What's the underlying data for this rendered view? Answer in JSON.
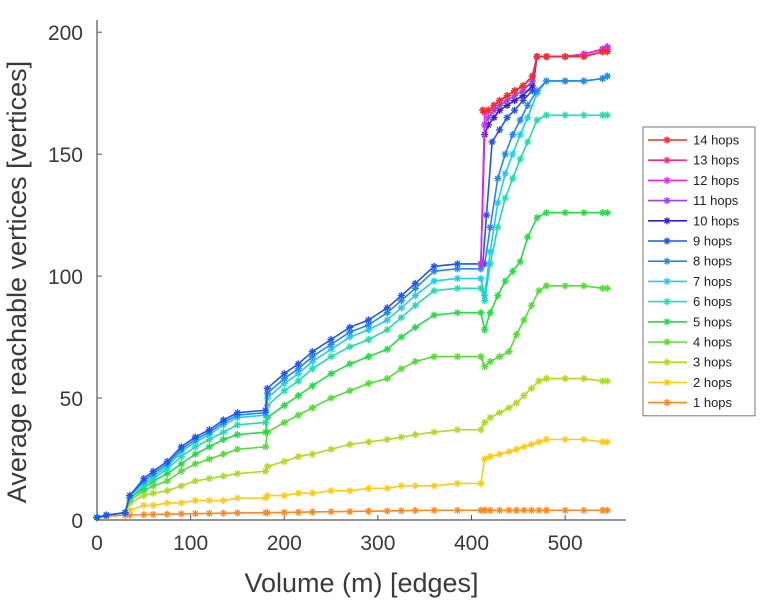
{
  "chart_data": {
    "type": "line",
    "title": "",
    "xlabel": "Volume (m) [edges]",
    "ylabel": "Average reachable vertices [vertices]",
    "xlim": [
      0,
      565
    ],
    "ylim": [
      0,
      205
    ],
    "xticks": [
      0,
      100,
      200,
      300,
      400,
      500
    ],
    "yticks": [
      0,
      50,
      100,
      150,
      200
    ],
    "grid": false,
    "legend_position": "right",
    "marker": "asterisk",
    "series": [
      {
        "name": "14 hops",
        "color": "#ff2a2a",
        "x": [
          412,
          418,
          424,
          430,
          438,
          446,
          455,
          465,
          470,
          480,
          500,
          520,
          540,
          545
        ],
        "y": [
          168,
          168,
          170,
          172,
          174,
          176,
          178,
          182,
          190,
          190,
          190,
          190,
          192,
          192
        ]
      },
      {
        "name": "13 hops",
        "color": "#ff2a80",
        "x": [
          412,
          418,
          424,
          430,
          438,
          446,
          455,
          465,
          470,
          480,
          500,
          520,
          540,
          545
        ],
        "y": [
          168,
          168,
          170,
          172,
          174,
          176,
          178,
          182,
          190,
          190,
          190,
          190,
          192,
          192
        ]
      },
      {
        "name": "12 hops",
        "color": "#ee22ee",
        "x": [
          410,
          414,
          418,
          424,
          430,
          438,
          446,
          455,
          465,
          470,
          480,
          500,
          520,
          540,
          545
        ],
        "y": [
          105,
          167,
          168,
          170,
          172,
          174,
          176,
          178,
          182,
          190,
          190,
          190,
          191,
          193,
          193
        ]
      },
      {
        "name": "11 hops",
        "color": "#9944ee",
        "x": [
          410,
          414,
          418,
          424,
          430,
          438,
          446,
          455,
          465,
          470,
          480,
          500,
          520,
          540,
          545
        ],
        "y": [
          105,
          162,
          165,
          168,
          170,
          172,
          174,
          176,
          180,
          190,
          190,
          190,
          191,
          193,
          194
        ]
      },
      {
        "name": "10 hops",
        "color": "#3322cc",
        "x": [
          410,
          414,
          418,
          424,
          430,
          438,
          446,
          455,
          465,
          470,
          480,
          500,
          520,
          540,
          545
        ],
        "y": [
          105,
          158,
          162,
          165,
          168,
          170,
          172,
          174,
          178,
          190,
          190,
          190,
          191,
          193,
          194
        ]
      },
      {
        "name": "9 hops",
        "color": "#2255ee",
        "x": [
          0,
          10,
          30,
          35,
          50,
          60,
          75,
          90,
          105,
          120,
          135,
          150,
          180,
          182,
          200,
          215,
          230,
          250,
          270,
          290,
          310,
          325,
          340,
          360,
          385,
          410,
          412,
          416,
          422,
          430,
          438,
          446,
          455,
          465,
          470,
          480,
          500,
          520,
          540,
          545
        ],
        "y": [
          1,
          2,
          3,
          10,
          17,
          20,
          24,
          30,
          34,
          37,
          41,
          44,
          45,
          54,
          60,
          64,
          69,
          74,
          79,
          82,
          87,
          92,
          97,
          104,
          105,
          105,
          105,
          125,
          155,
          160,
          165,
          168,
          172,
          176,
          190,
          190,
          190,
          191,
          193,
          193
        ]
      },
      {
        "name": "8 hops",
        "color": "#2288ee",
        "x": [
          0,
          10,
          30,
          35,
          50,
          60,
          75,
          90,
          105,
          120,
          135,
          150,
          180,
          182,
          200,
          215,
          230,
          250,
          270,
          290,
          310,
          325,
          340,
          360,
          385,
          410,
          414,
          420,
          428,
          436,
          444,
          452,
          460,
          470,
          480,
          500,
          520,
          540,
          545
        ],
        "y": [
          1,
          2,
          3,
          10,
          16,
          19,
          23,
          29,
          33,
          36,
          40,
          43,
          44,
          52,
          58,
          62,
          67,
          72,
          77,
          80,
          85,
          90,
          95,
          102,
          103,
          103,
          105,
          120,
          140,
          150,
          158,
          164,
          170,
          176,
          180,
          180,
          180,
          181,
          182
        ]
      },
      {
        "name": "7 hops",
        "color": "#22ccee",
        "x": [
          0,
          10,
          30,
          35,
          50,
          60,
          75,
          90,
          105,
          120,
          135,
          150,
          180,
          182,
          200,
          215,
          230,
          250,
          270,
          290,
          310,
          325,
          340,
          360,
          385,
          410,
          414,
          420,
          428,
          436,
          444,
          452,
          460,
          470,
          480,
          500,
          520,
          540,
          545
        ],
        "y": [
          1,
          2,
          3,
          10,
          15,
          18,
          22,
          28,
          32,
          35,
          39,
          42,
          43,
          50,
          56,
          60,
          65,
          70,
          75,
          78,
          82,
          87,
          92,
          98,
          99,
          99,
          92,
          110,
          130,
          142,
          150,
          158,
          165,
          175,
          180,
          180,
          180,
          181,
          182
        ]
      },
      {
        "name": "6 hops",
        "color": "#22ddaa",
        "x": [
          0,
          10,
          30,
          35,
          50,
          60,
          75,
          90,
          105,
          120,
          135,
          150,
          180,
          182,
          200,
          215,
          230,
          250,
          270,
          290,
          310,
          325,
          340,
          360,
          385,
          410,
          414,
          420,
          428,
          436,
          444,
          452,
          460,
          470,
          480,
          500,
          520,
          540,
          545
        ],
        "y": [
          1,
          2,
          3,
          9,
          14,
          17,
          21,
          26,
          30,
          33,
          36,
          39,
          40,
          47,
          53,
          57,
          62,
          67,
          71,
          74,
          78,
          83,
          88,
          94,
          95,
          95,
          90,
          105,
          120,
          132,
          140,
          148,
          155,
          164,
          166,
          166,
          166,
          166,
          166
        ]
      },
      {
        "name": "5 hops",
        "color": "#22dd44",
        "x": [
          0,
          10,
          30,
          35,
          50,
          60,
          75,
          90,
          105,
          120,
          135,
          150,
          180,
          182,
          200,
          215,
          230,
          250,
          270,
          290,
          310,
          325,
          340,
          360,
          385,
          410,
          414,
          420,
          428,
          436,
          444,
          452,
          460,
          470,
          480,
          500,
          520,
          540,
          545
        ],
        "y": [
          1,
          2,
          3,
          9,
          13,
          16,
          19,
          23,
          27,
          30,
          33,
          35,
          36,
          42,
          47,
          51,
          55,
          60,
          64,
          67,
          70,
          75,
          79,
          84,
          85,
          85,
          78,
          85,
          92,
          98,
          102,
          106,
          116,
          124,
          126,
          126,
          126,
          126,
          126
        ]
      },
      {
        "name": "4 hops",
        "color": "#55dd33",
        "x": [
          0,
          10,
          30,
          35,
          50,
          60,
          75,
          90,
          105,
          120,
          135,
          150,
          180,
          182,
          200,
          215,
          230,
          250,
          270,
          290,
          310,
          325,
          340,
          360,
          385,
          410,
          414,
          420,
          430,
          440,
          448,
          456,
          464,
          472,
          480,
          500,
          520,
          540,
          545
        ],
        "y": [
          1,
          2,
          3,
          8,
          12,
          14,
          16,
          20,
          23,
          25,
          27,
          29,
          30,
          36,
          40,
          43,
          46,
          50,
          53,
          56,
          58,
          62,
          65,
          67,
          67,
          67,
          63,
          65,
          67,
          69,
          76,
          82,
          88,
          94,
          96,
          96,
          96,
          95,
          95
        ]
      },
      {
        "name": "3 hops",
        "color": "#aadd22",
        "x": [
          0,
          10,
          30,
          35,
          50,
          60,
          75,
          90,
          105,
          120,
          135,
          150,
          180,
          182,
          200,
          215,
          230,
          250,
          270,
          290,
          310,
          325,
          340,
          360,
          385,
          410,
          414,
          420,
          430,
          440,
          448,
          456,
          464,
          472,
          480,
          500,
          520,
          540,
          545
        ],
        "y": [
          1,
          2,
          3,
          7,
          10,
          11,
          12,
          14,
          16,
          17,
          18,
          19,
          20,
          22,
          24,
          26,
          27,
          29,
          31,
          32,
          33,
          34,
          35,
          36,
          37,
          37,
          40,
          42,
          44,
          46,
          48,
          51,
          54,
          57,
          58,
          58,
          58,
          57,
          57
        ]
      },
      {
        "name": "2 hops",
        "color": "#ffcc11",
        "x": [
          0,
          10,
          30,
          35,
          50,
          60,
          75,
          90,
          105,
          120,
          135,
          150,
          180,
          182,
          200,
          215,
          230,
          250,
          270,
          290,
          310,
          325,
          340,
          360,
          385,
          410,
          414,
          420,
          430,
          440,
          448,
          456,
          464,
          472,
          480,
          500,
          520,
          540,
          545
        ],
        "y": [
          1,
          2,
          3,
          4,
          6,
          6,
          7,
          7,
          8,
          8,
          8,
          9,
          9,
          10,
          10,
          11,
          11,
          12,
          12,
          13,
          13,
          14,
          14,
          14,
          15,
          15,
          25,
          26,
          27,
          28,
          29,
          30,
          31,
          32,
          33,
          33,
          33,
          32,
          32
        ]
      },
      {
        "name": "1 hops",
        "color": "#ff8822",
        "x": [
          0,
          10,
          30,
          35,
          50,
          60,
          75,
          90,
          105,
          120,
          135,
          150,
          180,
          182,
          200,
          215,
          230,
          250,
          270,
          290,
          310,
          325,
          340,
          360,
          385,
          410,
          414,
          420,
          430,
          440,
          448,
          456,
          464,
          472,
          480,
          500,
          520,
          540,
          545
        ],
        "y": [
          1,
          1.5,
          2,
          2,
          2.2,
          2.3,
          2.4,
          2.5,
          2.6,
          2.7,
          2.8,
          2.9,
          3,
          3,
          3.1,
          3.2,
          3.3,
          3.4,
          3.5,
          3.6,
          3.7,
          3.8,
          3.9,
          4,
          4,
          4,
          4,
          4,
          4,
          4,
          4,
          4,
          4,
          4,
          4,
          4,
          4,
          4,
          4
        ]
      }
    ]
  }
}
